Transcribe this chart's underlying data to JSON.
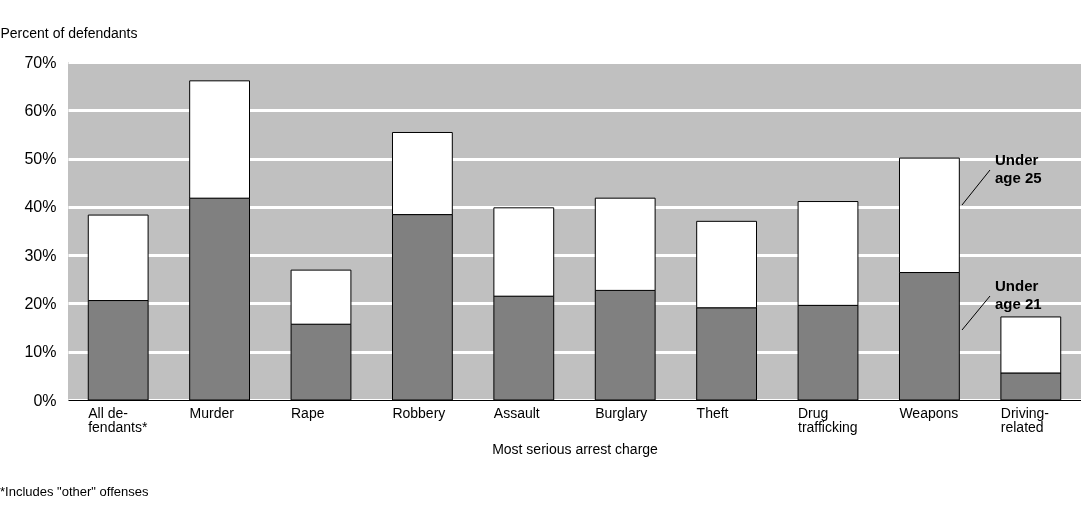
{
  "chart_data": {
    "type": "bar",
    "stacked": true,
    "ylabel": "Percent of defendants",
    "xlabel": "Most serious arrest charge",
    "categories": [
      "All de-\nfendants*",
      "Murder",
      "Rape",
      "Robbery",
      "Assault",
      "Burglary",
      "Theft",
      "Drug\ntrafficking",
      "Weapons",
      "Driving-\nrelated"
    ],
    "series": [
      {
        "name": "Under age 21",
        "color": "#808080",
        "values": [
          20.6,
          41.8,
          15.7,
          38.4,
          21.5,
          22.7,
          19.1,
          19.6,
          26.4,
          5.6
        ]
      },
      {
        "name": "Under age 25",
        "color": "#ffffff",
        "values": [
          17.7,
          24.3,
          11.2,
          17.0,
          18.3,
          19.1,
          17.9,
          21.5,
          23.7,
          11.6
        ]
      }
    ],
    "ylim": [
      0,
      70
    ],
    "yticks": [
      {
        "value": 0,
        "label": "0%"
      },
      {
        "value": 10,
        "label": "10%"
      },
      {
        "value": 20,
        "label": "20%"
      },
      {
        "value": 30,
        "label": "30%"
      },
      {
        "value": 40,
        "label": "40%"
      },
      {
        "value": 50,
        "label": "50%"
      },
      {
        "value": 60,
        "label": "60%"
      },
      {
        "value": 70,
        "label": "70%"
      }
    ],
    "grid": "y",
    "legend": false,
    "annotations": [
      "*Includes \"other\" offenses"
    ]
  }
}
